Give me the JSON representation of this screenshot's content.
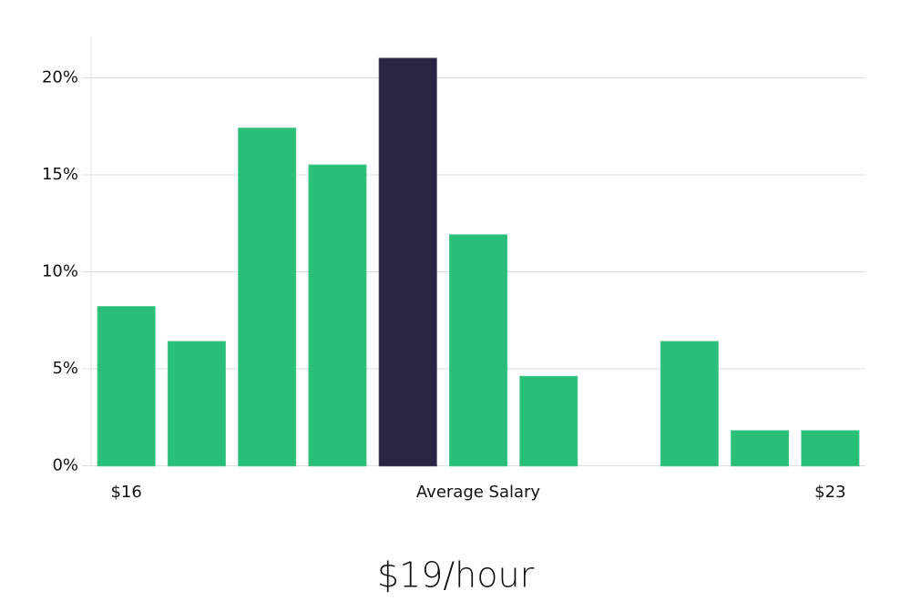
{
  "chart_data": {
    "type": "bar",
    "categories": [
      "$16",
      null,
      null,
      null,
      null,
      "Average Salary",
      null,
      null,
      null,
      null,
      "$23"
    ],
    "values": [
      8.2,
      6.4,
      17.4,
      15.5,
      21.0,
      11.9,
      4.6,
      0,
      6.4,
      1.8,
      1.8
    ],
    "colors": [
      "#2abf78",
      "#2abf78",
      "#2abf78",
      "#2abf78",
      "#282545",
      "#2abf78",
      "#2abf78",
      "#2abf78",
      "#2abf78",
      "#2abf78",
      "#2abf78"
    ],
    "ylim": [
      0,
      22
    ],
    "yticks": [
      {
        "value": 0,
        "label": "0%"
      },
      {
        "value": 5,
        "label": "5%"
      },
      {
        "value": 10,
        "label": "10%"
      },
      {
        "value": 15,
        "label": "15%"
      },
      {
        "value": 20,
        "label": "20%"
      }
    ],
    "grid": true,
    "annotation": "$19/hour"
  }
}
